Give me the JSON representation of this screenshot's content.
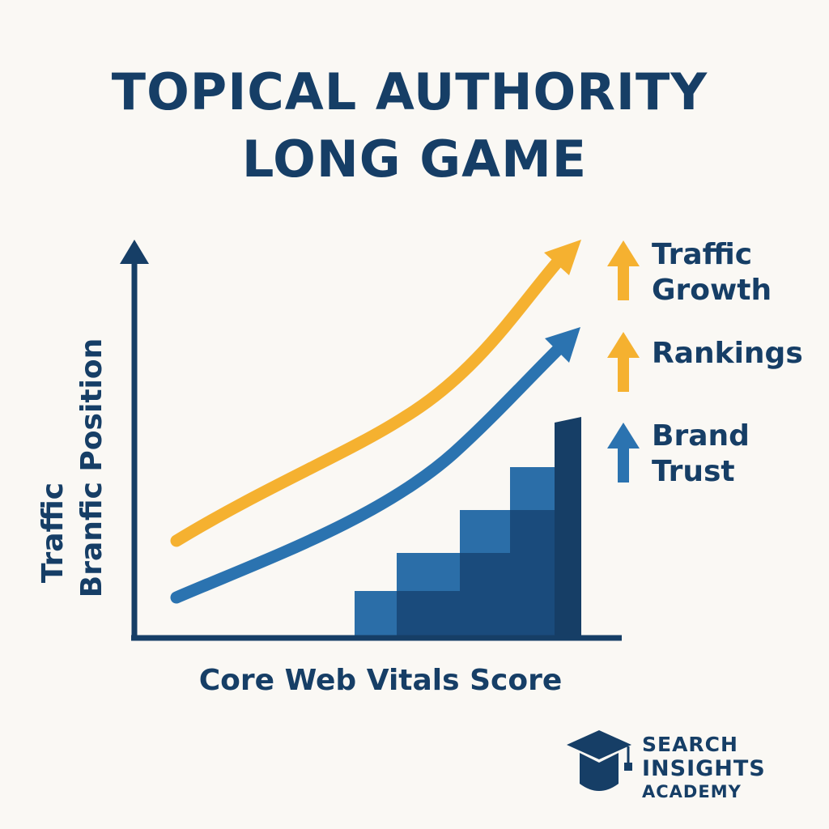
{
  "header": {
    "title": [
      "TOPICAL AUTHORITY",
      "LONG GAME"
    ]
  },
  "axes": {
    "y_label": [
      "Traffic",
      "Branfic Position"
    ],
    "x_label": "Core Web Vitals Score"
  },
  "legend": [
    {
      "label": [
        "Traffic",
        "Growth"
      ]
    },
    {
      "label": [
        "Rankings"
      ]
    },
    {
      "label": [
        "Brand",
        "Trust"
      ]
    }
  ],
  "brand": [
    "SEARCH",
    "INSIGHTS",
    "ACADEMY"
  ]
}
